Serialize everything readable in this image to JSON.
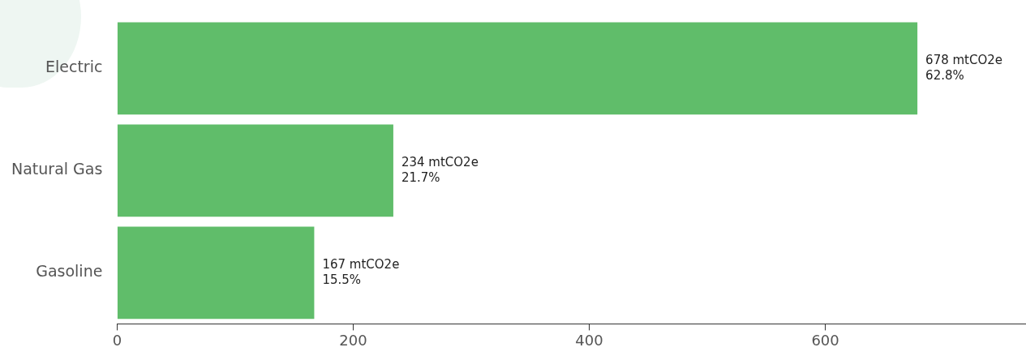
{
  "chart_data": {
    "type": "bar",
    "orientation": "horizontal",
    "categories": [
      "Electric",
      "Natural Gas",
      "Gasoline"
    ],
    "values": [
      678,
      234,
      167
    ],
    "color": "#60bd6a",
    "value_labels": [
      "678 mtCO2e\n62.8%",
      "234 mtCO2e\n21.7%",
      "167 mtCO2e\n15.5%"
    ],
    "xlim": [
      0,
      770
    ],
    "xticks": [
      0,
      200,
      400,
      600
    ],
    "grid": false,
    "legend": false
  }
}
